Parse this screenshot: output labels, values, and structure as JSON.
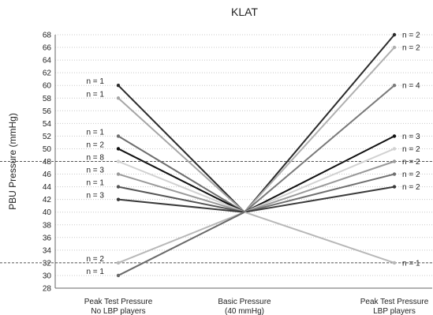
{
  "chart_data": {
    "type": "line",
    "title": "KLAT",
    "ylabel": "PBU Pressure (mmHg)",
    "xlabel": "",
    "ylim": [
      28,
      68
    ],
    "ytick_step": 2,
    "grid": "horizontal dotted",
    "categories": [
      [
        "Peak Test Pressure",
        "No LBP players"
      ],
      [
        "Basic Pressure",
        "(40 mmHg)"
      ],
      [
        "Peak Test Pressure",
        "LBP players"
      ]
    ],
    "reference_lines": [
      48,
      32
    ],
    "left_groups": [
      {
        "value": 60,
        "label": "n = 1",
        "color": "#2b2b2b"
      },
      {
        "value": 58,
        "label": "n = 1",
        "color": "#a6a6a6"
      },
      {
        "value": 52,
        "label": "n = 1",
        "color": "#6e6e6e"
      },
      {
        "value": 50,
        "label": "n = 2",
        "color": "#111111"
      },
      {
        "value": 48,
        "label": "n = 8",
        "color": "#d2d2d2"
      },
      {
        "value": 46,
        "label": "n = 3",
        "color": "#9a9a9a"
      },
      {
        "value": 44,
        "label": "n = 1",
        "color": "#555555"
      },
      {
        "value": 42,
        "label": "n = 3",
        "color": "#3a3a3a"
      },
      {
        "value": 32,
        "label": "n = 2",
        "color": "#b8b8b8"
      },
      {
        "value": 30,
        "label": "n = 1",
        "color": "#6a6a6a"
      }
    ],
    "right_groups": [
      {
        "value": 68,
        "label": "n = 2",
        "color": "#2b2b2b"
      },
      {
        "value": 66,
        "label": "n = 2",
        "color": "#b0b0b0"
      },
      {
        "value": 60,
        "label": "n = 4",
        "color": "#7a7a7a"
      },
      {
        "value": 52,
        "label": "n = 3",
        "color": "#111111"
      },
      {
        "value": 50,
        "label": "n = 2",
        "color": "#d2d2d2"
      },
      {
        "value": 48,
        "label": "n = 2",
        "color": "#9a9a9a"
      },
      {
        "value": 46,
        "label": "n = 2",
        "color": "#707070"
      },
      {
        "value": 44,
        "label": "n = 2",
        "color": "#3a3a3a"
      },
      {
        "value": 32,
        "label": "n = 1",
        "color": "#b8b8b8"
      }
    ],
    "center_value": 40
  }
}
